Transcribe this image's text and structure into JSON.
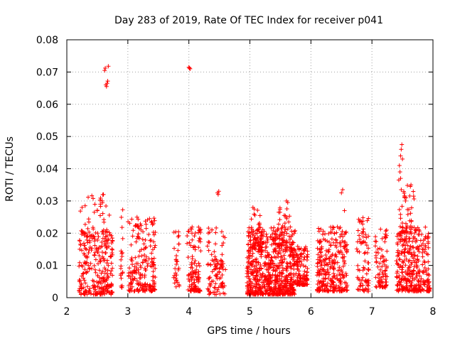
{
  "chart_data": {
    "type": "scatter",
    "title": "Day 283 of 2019, Rate Of TEC Index for receiver p041",
    "xlabel": "GPS time / hours",
    "ylabel": "ROTI / TECUs",
    "xlim": [
      2,
      8
    ],
    "ylim": [
      0,
      0.08
    ],
    "xticks": [
      "2",
      "3",
      "4",
      "5",
      "6",
      "7",
      "8"
    ],
    "yticks": [
      "0",
      "0.01",
      "0.02",
      "0.03",
      "0.04",
      "0.05",
      "0.06",
      "0.07",
      "0.08"
    ],
    "grid": true,
    "marker": "+",
    "color": "#ff0000",
    "series": [
      {
        "name": "ROTI",
        "clusters": [
          {
            "x": [
              2.2,
              2.75
            ],
            "y": [
              0.001,
              0.022
            ],
            "n": 260
          },
          {
            "x": [
              2.2,
              2.7
            ],
            "y": [
              0.015,
              0.032
            ],
            "n": 45
          },
          {
            "x": [
              2.88,
              2.92
            ],
            "y": [
              0.003,
              0.028
            ],
            "n": 20
          },
          {
            "x": [
              3.0,
              3.45
            ],
            "y": [
              0.002,
              0.025
            ],
            "n": 200
          },
          {
            "x": [
              3.75,
              3.85
            ],
            "y": [
              0.003,
              0.021
            ],
            "n": 30
          },
          {
            "x": [
              3.97,
              4.2
            ],
            "y": [
              0.002,
              0.022
            ],
            "n": 110
          },
          {
            "x": [
              4.3,
              4.6
            ],
            "y": [
              0.001,
              0.022
            ],
            "n": 100
          },
          {
            "x": [
              4.95,
              5.75
            ],
            "y": [
              0.001,
              0.022
            ],
            "n": 700
          },
          {
            "x": [
              5.0,
              5.2
            ],
            "y": [
              0.015,
              0.028
            ],
            "n": 40
          },
          {
            "x": [
              5.4,
              5.65
            ],
            "y": [
              0.015,
              0.03
            ],
            "n": 40
          },
          {
            "x": [
              5.75,
              5.95
            ],
            "y": [
              0.004,
              0.016
            ],
            "n": 120
          },
          {
            "x": [
              6.1,
              6.6
            ],
            "y": [
              0.002,
              0.022
            ],
            "n": 280
          },
          {
            "x": [
              6.75,
              6.95
            ],
            "y": [
              0.002,
              0.025
            ],
            "n": 80
          },
          {
            "x": [
              7.05,
              7.25
            ],
            "y": [
              0.003,
              0.022
            ],
            "n": 80
          },
          {
            "x": [
              7.4,
              7.95
            ],
            "y": [
              0.002,
              0.022
            ],
            "n": 330
          },
          {
            "x": [
              7.45,
              7.7
            ],
            "y": [
              0.02,
              0.035
            ],
            "n": 40
          }
        ],
        "points": [
          [
            2.62,
            0.0705
          ],
          [
            2.63,
            0.0712
          ],
          [
            2.65,
            0.0655
          ],
          [
            2.66,
            0.0665
          ],
          [
            2.67,
            0.0672
          ],
          [
            2.68,
            0.0718
          ],
          [
            2.64,
            0.066
          ],
          [
            4.0,
            0.0715
          ],
          [
            4.02,
            0.071
          ],
          [
            4.01,
            0.0712
          ],
          [
            4.47,
            0.0325
          ],
          [
            4.48,
            0.032
          ],
          [
            4.49,
            0.033
          ],
          [
            6.52,
            0.0335
          ],
          [
            6.5,
            0.0325
          ],
          [
            7.45,
            0.041
          ],
          [
            7.46,
            0.039
          ],
          [
            7.47,
            0.044
          ],
          [
            7.48,
            0.046
          ],
          [
            7.49,
            0.0475
          ],
          [
            7.5,
            0.043
          ],
          [
            7.44,
            0.0365
          ],
          [
            7.47,
            0.037
          ],
          [
            7.63,
            0.0345
          ],
          [
            7.64,
            0.035
          ],
          [
            7.55,
            0.03
          ],
          [
            7.56,
            0.031
          ],
          [
            2.55,
            0.029
          ],
          [
            2.58,
            0.03
          ],
          [
            2.5,
            0.027
          ],
          [
            2.45,
            0.0265
          ],
          [
            2.6,
            0.032
          ],
          [
            5.6,
            0.03
          ],
          [
            5.62,
            0.0295
          ],
          [
            5.05,
            0.028
          ],
          [
            5.07,
            0.0275
          ],
          [
            6.55,
            0.027
          ],
          [
            2.25,
            0.028
          ],
          [
            2.3,
            0.0285
          ]
        ]
      }
    ]
  }
}
